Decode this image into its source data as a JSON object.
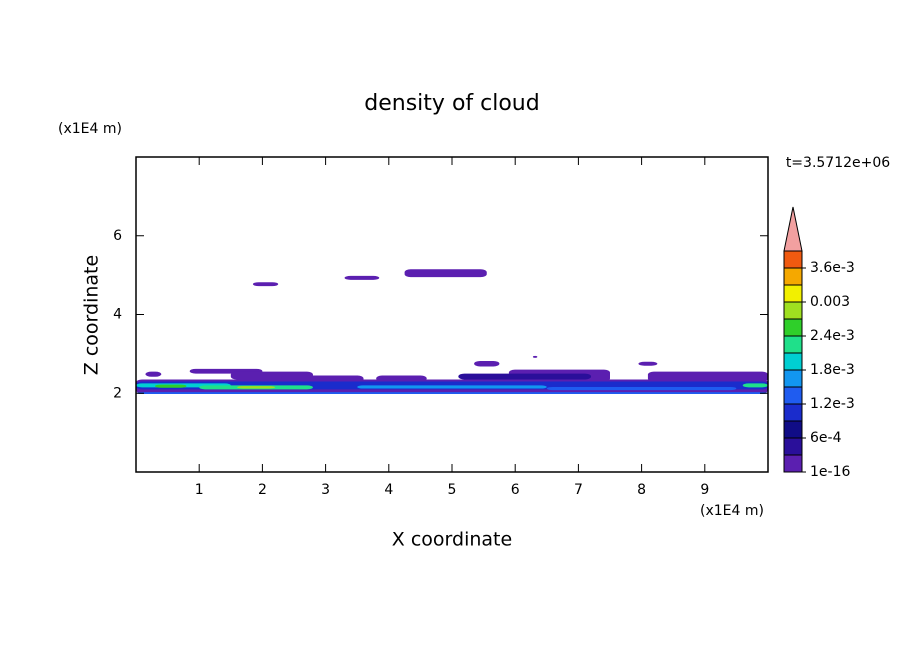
{
  "chart_data": {
    "type": "contour",
    "title": "density of cloud",
    "xlabel": "X coordinate",
    "ylabel": "Z coordinate",
    "xunit": "(x1E4 m)",
    "yunit": "(x1E4 m)",
    "annotation": "t=3.5712e+06",
    "xlim": [
      0,
      10
    ],
    "ylim": [
      0,
      8
    ],
    "xticks": [
      1,
      2,
      3,
      4,
      5,
      6,
      7,
      8,
      9
    ],
    "yticks": [
      2,
      4,
      6
    ],
    "levels": [
      1e-16,
      0.0003,
      0.0006,
      0.0009,
      0.0012,
      0.0015,
      0.0018,
      0.0021,
      0.0024,
      0.0027,
      0.003,
      0.0033,
      0.0036,
      0.0039
    ],
    "colors": [
      "#5b1fb0",
      "#2a0f9a",
      "#100c86",
      "#1a2ccc",
      "#1f5cf0",
      "#1296f0",
      "#00cfd2",
      "#1fe08a",
      "#2fcf2a",
      "#9fe020",
      "#f2f000",
      "#f5a800",
      "#f05a10"
    ],
    "over_color": "#f2a0a0",
    "colorbar_ticks": [
      1e-16,
      {
        "value": 0.0006,
        "label": "6e-4"
      },
      {
        "value": 0.0012,
        "label": "1.2e-3"
      },
      {
        "value": 0.0018,
        "label": "1.8e-3"
      },
      {
        "value": 0.0024,
        "label": "2.4e-3"
      },
      0.003,
      {
        "value": 0.0036,
        "label": "3.6e-3"
      }
    ],
    "regions": [
      {
        "x": [
          1.85,
          2.25
        ],
        "z": [
          4.72,
          4.82
        ],
        "value": 0.00015
      },
      {
        "x": [
          3.3,
          3.85
        ],
        "z": [
          4.88,
          4.98
        ],
        "value": 0.00015
      },
      {
        "x": [
          4.25,
          5.55
        ],
        "z": [
          4.95,
          5.15
        ],
        "value": 0.00015
      },
      {
        "x": [
          5.35,
          5.75
        ],
        "z": [
          2.68,
          2.82
        ],
        "value": 0.00015
      },
      {
        "x": [
          7.95,
          8.25
        ],
        "z": [
          2.7,
          2.8
        ],
        "value": 0.00015
      },
      {
        "x": [
          6.28,
          6.35
        ],
        "z": [
          2.9,
          2.95
        ],
        "value": 0.00015
      },
      {
        "x": [
          0.15,
          0.4
        ],
        "z": [
          2.42,
          2.55
        ],
        "value": 0.00015
      },
      {
        "x": [
          0.85,
          2.0
        ],
        "z": [
          2.5,
          2.62
        ],
        "value": 0.00015
      },
      {
        "x": [
          1.5,
          2.8
        ],
        "z": [
          2.35,
          2.55
        ],
        "value": 0.00015
      },
      {
        "x": [
          2.3,
          3.6
        ],
        "z": [
          2.25,
          2.45
        ],
        "value": 0.00015
      },
      {
        "x": [
          3.8,
          4.6
        ],
        "z": [
          2.3,
          2.45
        ],
        "value": 0.00015
      },
      {
        "x": [
          5.9,
          7.5
        ],
        "z": [
          2.3,
          2.6
        ],
        "value": 0.00015
      },
      {
        "x": [
          8.1,
          10
        ],
        "z": [
          2.3,
          2.55
        ],
        "value": 0.00015
      },
      {
        "x": [
          0,
          10
        ],
        "z": [
          2.0,
          2.35
        ],
        "value": 0.00015
      },
      {
        "x": [
          5.1,
          7.2
        ],
        "z": [
          2.35,
          2.5
        ],
        "value": 0.00045
      },
      {
        "x": [
          0,
          10
        ],
        "z": [
          2.1,
          2.3
        ],
        "value": 0.00105
      },
      {
        "x": [
          0,
          1.5
        ],
        "z": [
          2.15,
          2.25
        ],
        "value": 0.00195
      },
      {
        "x": [
          1.0,
          2.8
        ],
        "z": [
          2.1,
          2.2
        ],
        "value": 0.00225
      },
      {
        "x": [
          0.3,
          0.8
        ],
        "z": [
          2.14,
          2.22
        ],
        "value": 0.00255
      },
      {
        "x": [
          1.6,
          2.2
        ],
        "z": [
          2.12,
          2.18
        ],
        "value": 0.00285
      },
      {
        "x": [
          3.5,
          6.5
        ],
        "z": [
          2.12,
          2.2
        ],
        "value": 0.00165
      },
      {
        "x": [
          6.5,
          9.5
        ],
        "z": [
          2.08,
          2.16
        ],
        "value": 0.00135
      },
      {
        "x": [
          9.6,
          10
        ],
        "z": [
          2.15,
          2.25
        ],
        "value": 0.00225
      },
      {
        "x": [
          0,
          10
        ],
        "z": [
          1.98,
          2.03
        ],
        "value": 0.00135
      }
    ]
  }
}
